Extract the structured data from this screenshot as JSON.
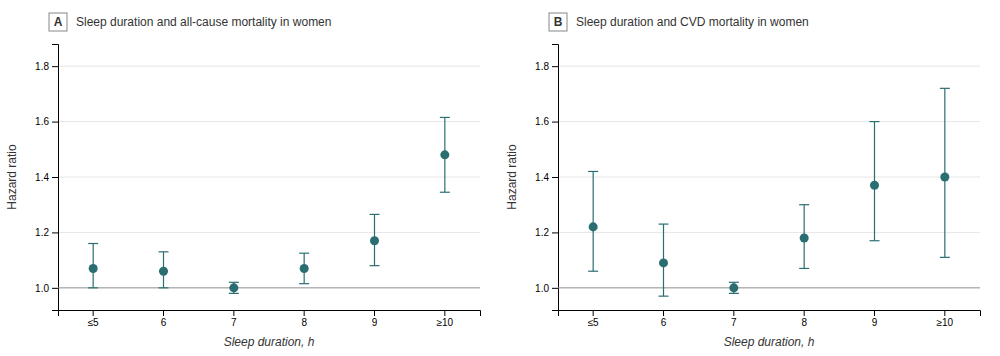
{
  "chart_data": [
    {
      "type": "scatter",
      "title": "Sleep duration and all-cause mortality in women",
      "annotations": [
        "A"
      ],
      "x_label": "Sleep duration, h",
      "y_label": "Hazard ratio",
      "categories": [
        "≤5",
        "6",
        "7",
        "8",
        "9",
        "≥10"
      ],
      "values": [
        1.07,
        1.06,
        1.0,
        1.07,
        1.17,
        1.48
      ],
      "yerr_lo": [
        0.07,
        0.06,
        0.02,
        0.055,
        0.09,
        0.135
      ],
      "yerr_hi": [
        0.09,
        0.07,
        0.02,
        0.055,
        0.095,
        0.135
      ],
      "reference_line": 1.0,
      "color": "#2b6e72",
      "marker": "circle",
      "ylim": [
        0.92,
        1.88
      ],
      "yticks": [
        {
          "value": 1.0,
          "label": "1.0"
        },
        1.2,
        1.4,
        1.6,
        1.8
      ],
      "grid": "y"
    },
    {
      "type": "scatter",
      "title": "Sleep duration and CVD mortality in women",
      "annotations": [
        "B"
      ],
      "x_label": "Sleep duration, h",
      "y_label": "Hazard ratio",
      "categories": [
        "≤5",
        "6",
        "7",
        "8",
        "9",
        "≥10"
      ],
      "values": [
        1.22,
        1.09,
        1.0,
        1.18,
        1.37,
        1.4
      ],
      "yerr_lo": [
        0.16,
        0.12,
        0.02,
        0.11,
        0.2,
        0.29
      ],
      "yerr_hi": [
        0.2,
        0.14,
        0.02,
        0.12,
        0.23,
        0.32
      ],
      "reference_line": 1.0,
      "color": "#2b6e72",
      "marker": "circle",
      "ylim": [
        0.92,
        1.88
      ],
      "yticks": [
        {
          "value": 1.0,
          "label": "1.0"
        },
        1.2,
        1.4,
        1.6,
        1.8
      ],
      "grid": "y"
    }
  ]
}
